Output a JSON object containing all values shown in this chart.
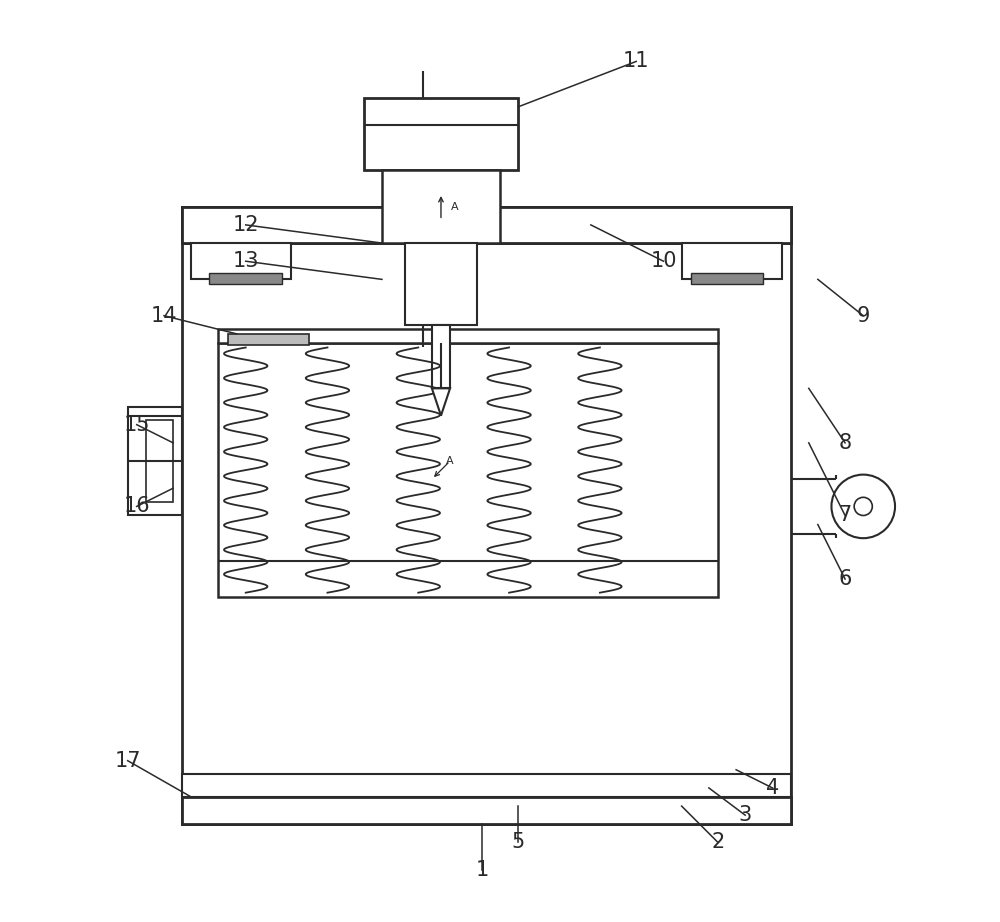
{
  "bg_color": "#ffffff",
  "line_color": "#2a2a2a",
  "lw_main": 1.8,
  "lw_thin": 1.2,
  "gray_fill": "#888888",
  "light_gray": "#cccccc"
}
